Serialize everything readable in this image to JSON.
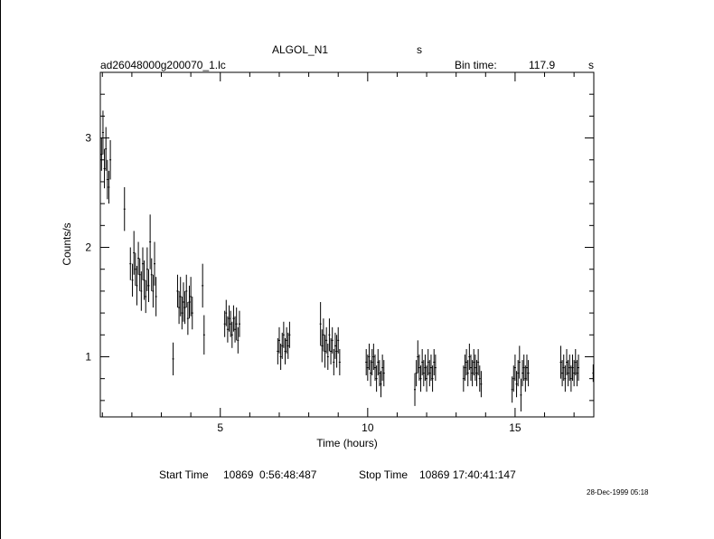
{
  "header": {
    "object_name": "ALGOL_N1",
    "object_unit": "s",
    "filename": "ad26048000g200070_1.lc",
    "bin_time_label": "Bin time:",
    "bin_time_value": "117.9",
    "bin_time_unit": "s"
  },
  "footer": {
    "start_label": "Start Time",
    "start_value": "10869  0:56:48:487",
    "stop_label": "Stop Time",
    "stop_value": "10869 17:40:41:147",
    "date_stamp": "28-Dec-1999 05:18"
  },
  "chart_data": {
    "type": "scatter",
    "xlabel": "Time (hours)",
    "ylabel": "Counts/s",
    "xlim": [
      0.93,
      17.67
    ],
    "ylim": [
      0.45,
      3.6
    ],
    "x_ticks": [
      5,
      10,
      15
    ],
    "y_ticks": [
      1,
      2,
      3
    ],
    "error_bars": "vertical",
    "series": [
      {
        "points": [
          {
            "x": 0.97,
            "y": 2.85,
            "err": 0.15
          },
          {
            "x": 1.02,
            "y": 3.05,
            "err": 0.2
          },
          {
            "x": 1.07,
            "y": 2.72,
            "err": 0.18
          },
          {
            "x": 1.12,
            "y": 2.9,
            "err": 0.2
          },
          {
            "x": 1.17,
            "y": 2.62,
            "err": 0.18
          },
          {
            "x": 1.22,
            "y": 2.55,
            "err": 0.15
          },
          {
            "x": 1.27,
            "y": 2.8,
            "err": 0.18
          },
          {
            "x": 1.75,
            "y": 2.35,
            "err": 0.2
          },
          {
            "x": 1.95,
            "y": 1.85,
            "err": 0.15
          },
          {
            "x": 2.02,
            "y": 1.7,
            "err": 0.15
          },
          {
            "x": 2.07,
            "y": 1.95,
            "err": 0.2
          },
          {
            "x": 2.12,
            "y": 1.8,
            "err": 0.15
          },
          {
            "x": 2.17,
            "y": 1.65,
            "err": 0.18
          },
          {
            "x": 2.22,
            "y": 1.9,
            "err": 0.15
          },
          {
            "x": 2.27,
            "y": 1.75,
            "err": 0.15
          },
          {
            "x": 2.32,
            "y": 1.6,
            "err": 0.18
          },
          {
            "x": 2.37,
            "y": 1.85,
            "err": 0.15
          },
          {
            "x": 2.42,
            "y": 1.7,
            "err": 0.18
          },
          {
            "x": 2.47,
            "y": 1.55,
            "err": 0.15
          },
          {
            "x": 2.52,
            "y": 1.8,
            "err": 0.2
          },
          {
            "x": 2.57,
            "y": 1.65,
            "err": 0.15
          },
          {
            "x": 2.62,
            "y": 2.05,
            "err": 0.25
          },
          {
            "x": 2.67,
            "y": 1.75,
            "err": 0.15
          },
          {
            "x": 2.72,
            "y": 1.6,
            "err": 0.15
          },
          {
            "x": 2.77,
            "y": 1.85,
            "err": 0.2
          },
          {
            "x": 2.82,
            "y": 1.55,
            "err": 0.18
          },
          {
            "x": 3.4,
            "y": 0.98,
            "err": 0.15
          },
          {
            "x": 3.55,
            "y": 1.6,
            "err": 0.15
          },
          {
            "x": 3.6,
            "y": 1.45,
            "err": 0.15
          },
          {
            "x": 3.65,
            "y": 1.55,
            "err": 0.18
          },
          {
            "x": 3.7,
            "y": 1.4,
            "err": 0.15
          },
          {
            "x": 3.75,
            "y": 1.5,
            "err": 0.18
          },
          {
            "x": 3.8,
            "y": 1.45,
            "err": 0.15
          },
          {
            "x": 3.85,
            "y": 1.6,
            "err": 0.15
          },
          {
            "x": 3.9,
            "y": 1.35,
            "err": 0.15
          },
          {
            "x": 3.95,
            "y": 1.5,
            "err": 0.15
          },
          {
            "x": 4.0,
            "y": 1.55,
            "err": 0.18
          },
          {
            "x": 4.05,
            "y": 1.4,
            "err": 0.15
          },
          {
            "x": 4.4,
            "y": 1.65,
            "err": 0.2
          },
          {
            "x": 4.45,
            "y": 1.2,
            "err": 0.18
          },
          {
            "x": 5.15,
            "y": 1.3,
            "err": 0.12
          },
          {
            "x": 5.2,
            "y": 1.4,
            "err": 0.12
          },
          {
            "x": 5.25,
            "y": 1.25,
            "err": 0.12
          },
          {
            "x": 5.3,
            "y": 1.35,
            "err": 0.12
          },
          {
            "x": 5.35,
            "y": 1.3,
            "err": 0.12
          },
          {
            "x": 5.4,
            "y": 1.2,
            "err": 0.12
          },
          {
            "x": 5.45,
            "y": 1.35,
            "err": 0.12
          },
          {
            "x": 5.5,
            "y": 1.25,
            "err": 0.12
          },
          {
            "x": 5.55,
            "y": 1.3,
            "err": 0.15
          },
          {
            "x": 5.6,
            "y": 1.15,
            "err": 0.12
          },
          {
            "x": 5.65,
            "y": 1.3,
            "err": 0.12
          },
          {
            "x": 6.95,
            "y": 1.05,
            "err": 0.12
          },
          {
            "x": 7.0,
            "y": 1.15,
            "err": 0.12
          },
          {
            "x": 7.05,
            "y": 1.0,
            "err": 0.12
          },
          {
            "x": 7.1,
            "y": 1.1,
            "err": 0.12
          },
          {
            "x": 7.15,
            "y": 1.2,
            "err": 0.12
          },
          {
            "x": 7.2,
            "y": 1.05,
            "err": 0.12
          },
          {
            "x": 7.25,
            "y": 1.15,
            "err": 0.12
          },
          {
            "x": 7.3,
            "y": 1.1,
            "err": 0.12
          },
          {
            "x": 7.35,
            "y": 1.2,
            "err": 0.12
          },
          {
            "x": 8.4,
            "y": 1.3,
            "err": 0.2
          },
          {
            "x": 8.45,
            "y": 1.1,
            "err": 0.15
          },
          {
            "x": 8.5,
            "y": 1.2,
            "err": 0.15
          },
          {
            "x": 8.55,
            "y": 1.05,
            "err": 0.15
          },
          {
            "x": 8.6,
            "y": 1.15,
            "err": 0.12
          },
          {
            "x": 8.65,
            "y": 1.0,
            "err": 0.12
          },
          {
            "x": 8.7,
            "y": 1.2,
            "err": 0.15
          },
          {
            "x": 8.75,
            "y": 1.05,
            "err": 0.12
          },
          {
            "x": 8.8,
            "y": 1.15,
            "err": 0.12
          },
          {
            "x": 8.85,
            "y": 0.95,
            "err": 0.12
          },
          {
            "x": 8.9,
            "y": 1.1,
            "err": 0.12
          },
          {
            "x": 8.95,
            "y": 1.05,
            "err": 0.15
          },
          {
            "x": 9.0,
            "y": 1.15,
            "err": 0.12
          },
          {
            "x": 9.05,
            "y": 0.95,
            "err": 0.12
          },
          {
            "x": 9.95,
            "y": 0.95,
            "err": 0.12
          },
          {
            "x": 10.0,
            "y": 0.9,
            "err": 0.12
          },
          {
            "x": 10.05,
            "y": 1.0,
            "err": 0.12
          },
          {
            "x": 10.1,
            "y": 0.85,
            "err": 0.12
          },
          {
            "x": 10.15,
            "y": 0.95,
            "err": 0.12
          },
          {
            "x": 10.2,
            "y": 1.0,
            "err": 0.12
          },
          {
            "x": 10.25,
            "y": 0.9,
            "err": 0.12
          },
          {
            "x": 10.3,
            "y": 0.8,
            "err": 0.12
          },
          {
            "x": 10.35,
            "y": 0.95,
            "err": 0.12
          },
          {
            "x": 10.4,
            "y": 0.85,
            "err": 0.12
          },
          {
            "x": 10.45,
            "y": 0.75,
            "err": 0.12
          },
          {
            "x": 10.5,
            "y": 0.9,
            "err": 0.12
          },
          {
            "x": 10.55,
            "y": 0.85,
            "err": 0.12
          },
          {
            "x": 11.6,
            "y": 0.7,
            "err": 0.15
          },
          {
            "x": 11.65,
            "y": 0.85,
            "err": 0.12
          },
          {
            "x": 11.7,
            "y": 1.0,
            "err": 0.15
          },
          {
            "x": 11.75,
            "y": 0.9,
            "err": 0.12
          },
          {
            "x": 11.8,
            "y": 0.8,
            "err": 0.12
          },
          {
            "x": 11.85,
            "y": 0.95,
            "err": 0.12
          },
          {
            "x": 11.9,
            "y": 0.85,
            "err": 0.12
          },
          {
            "x": 11.95,
            "y": 0.9,
            "err": 0.12
          },
          {
            "x": 12.0,
            "y": 0.8,
            "err": 0.12
          },
          {
            "x": 12.05,
            "y": 0.95,
            "err": 0.12
          },
          {
            "x": 12.1,
            "y": 0.85,
            "err": 0.12
          },
          {
            "x": 12.15,
            "y": 0.9,
            "err": 0.12
          },
          {
            "x": 12.2,
            "y": 0.8,
            "err": 0.12
          },
          {
            "x": 12.25,
            "y": 0.95,
            "err": 0.12
          },
          {
            "x": 12.3,
            "y": 0.9,
            "err": 0.12
          },
          {
            "x": 13.25,
            "y": 0.8,
            "err": 0.12
          },
          {
            "x": 13.3,
            "y": 0.9,
            "err": 0.12
          },
          {
            "x": 13.35,
            "y": 0.95,
            "err": 0.12
          },
          {
            "x": 13.4,
            "y": 0.85,
            "err": 0.12
          },
          {
            "x": 13.45,
            "y": 1.0,
            "err": 0.12
          },
          {
            "x": 13.5,
            "y": 0.9,
            "err": 0.12
          },
          {
            "x": 13.55,
            "y": 0.85,
            "err": 0.12
          },
          {
            "x": 13.6,
            "y": 0.95,
            "err": 0.12
          },
          {
            "x": 13.65,
            "y": 0.9,
            "err": 0.12
          },
          {
            "x": 13.7,
            "y": 0.85,
            "err": 0.12
          },
          {
            "x": 13.75,
            "y": 0.95,
            "err": 0.12
          },
          {
            "x": 13.8,
            "y": 0.8,
            "err": 0.12
          },
          {
            "x": 13.85,
            "y": 0.75,
            "err": 0.12
          },
          {
            "x": 14.9,
            "y": 0.7,
            "err": 0.12
          },
          {
            "x": 14.95,
            "y": 0.8,
            "err": 0.12
          },
          {
            "x": 15.0,
            "y": 0.9,
            "err": 0.12
          },
          {
            "x": 15.05,
            "y": 0.75,
            "err": 0.12
          },
          {
            "x": 15.1,
            "y": 0.85,
            "err": 0.12
          },
          {
            "x": 15.15,
            "y": 0.95,
            "err": 0.15
          },
          {
            "x": 15.2,
            "y": 0.65,
            "err": 0.15
          },
          {
            "x": 15.25,
            "y": 0.85,
            "err": 0.12
          },
          {
            "x": 15.3,
            "y": 0.9,
            "err": 0.12
          },
          {
            "x": 15.35,
            "y": 0.8,
            "err": 0.12
          },
          {
            "x": 15.4,
            "y": 0.9,
            "err": 0.12
          },
          {
            "x": 15.45,
            "y": 0.85,
            "err": 0.12
          },
          {
            "x": 16.55,
            "y": 0.95,
            "err": 0.15
          },
          {
            "x": 16.6,
            "y": 0.85,
            "err": 0.12
          },
          {
            "x": 16.65,
            "y": 0.9,
            "err": 0.12
          },
          {
            "x": 16.7,
            "y": 0.8,
            "err": 0.12
          },
          {
            "x": 16.75,
            "y": 0.95,
            "err": 0.12
          },
          {
            "x": 16.8,
            "y": 0.85,
            "err": 0.12
          },
          {
            "x": 16.85,
            "y": 0.9,
            "err": 0.12
          },
          {
            "x": 16.9,
            "y": 0.8,
            "err": 0.12
          },
          {
            "x": 16.95,
            "y": 0.9,
            "err": 0.12
          },
          {
            "x": 17.0,
            "y": 0.85,
            "err": 0.12
          },
          {
            "x": 17.05,
            "y": 0.95,
            "err": 0.12
          },
          {
            "x": 17.1,
            "y": 0.85,
            "err": 0.12
          },
          {
            "x": 17.15,
            "y": 0.9,
            "err": 0.12
          },
          {
            "x": 17.65,
            "y": 0.85,
            "err": 0.08
          }
        ]
      }
    ]
  }
}
